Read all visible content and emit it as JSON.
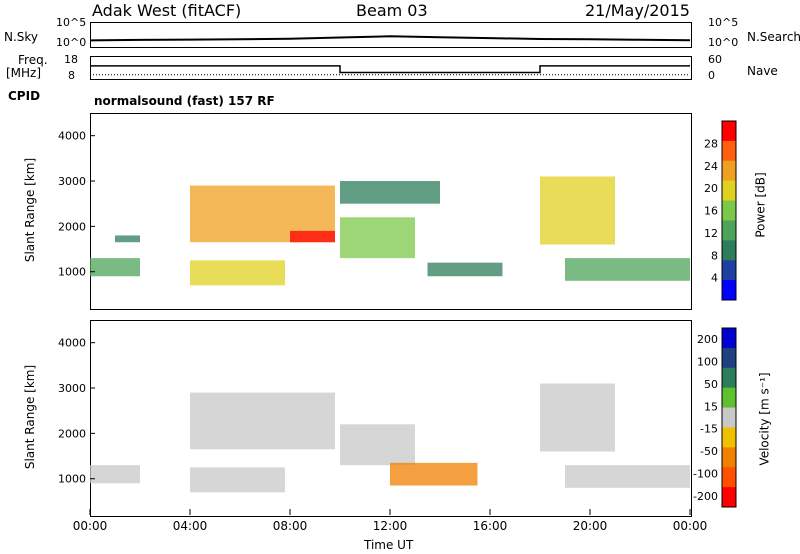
{
  "header": {
    "station": "Adak West (fitACF)",
    "beam": "Beam 03",
    "date": "21/May/2015"
  },
  "cpid": {
    "label": "CPID",
    "value": "normalsound (fast) 157 RF"
  },
  "colors": {
    "power_scale": [
      "#0000ff",
      "#1f3fa0",
      "#2e7d5a",
      "#4ca45a",
      "#7bc84a",
      "#e0d020",
      "#f0a020",
      "#ff6010",
      "#ff0000"
    ],
    "velocity_scale": [
      "#0000d0",
      "#204080",
      "#2e7d5a",
      "#60c030",
      "#c8c8c8",
      "#f0c000",
      "#f08000",
      "#ff5000",
      "#ff0000"
    ]
  },
  "chart_data": [
    {
      "type": "line",
      "panel": "noise",
      "left_label": "N.Sky",
      "right_label": "N.Search",
      "left_ticks": [
        "10^5",
        "10^0"
      ],
      "right_ticks": [
        "10^5",
        "10^0"
      ],
      "x": [
        0,
        2,
        4,
        6,
        8,
        10,
        12,
        14,
        16,
        18,
        20,
        22,
        24
      ],
      "series": [
        {
          "values_log": [
            0.55,
            0.7,
            0.8,
            0.9,
            1.1,
            1.5,
            1.9,
            1.6,
            1.3,
            1.0,
            0.9,
            0.75,
            0.6
          ]
        }
      ]
    },
    {
      "type": "line",
      "panel": "frequency",
      "left_label": "Freq.",
      "left_unit": "[MHz]",
      "right_label": "Nave",
      "left_ticks": [
        18,
        8
      ],
      "right_ticks": [
        60,
        0
      ],
      "series": [
        {
          "x": [
            0,
            10,
            10,
            18,
            18,
            24
          ],
          "values": [
            13.5,
            13.5,
            10.5,
            10.5,
            13.5,
            13.5
          ]
        },
        {
          "x": [
            0,
            24
          ],
          "values": [
            9.5,
            9.5
          ]
        }
      ]
    },
    {
      "type": "heatmap",
      "panel": "power",
      "ylabel": "Slant Range [km]",
      "yticks": [
        1000,
        2000,
        3000,
        4000
      ],
      "ylim": [
        200,
        4500
      ],
      "xlim": [
        0,
        24
      ],
      "colorbar_label": "Power [dB]",
      "colorbar_ticks": [
        4,
        8,
        12,
        16,
        20,
        24,
        28
      ],
      "echo_regions": [
        {
          "t": [
            0.0,
            2.0
          ],
          "r": [
            900,
            1300
          ],
          "level": 10
        },
        {
          "t": [
            1.0,
            2.0
          ],
          "r": [
            1650,
            1800
          ],
          "level": 6
        },
        {
          "t": [
            4.0,
            7.8
          ],
          "r": [
            700,
            1250
          ],
          "level": 16
        },
        {
          "t": [
            4.0,
            9.8
          ],
          "r": [
            1650,
            2900
          ],
          "level": 20
        },
        {
          "t": [
            8.0,
            9.8
          ],
          "r": [
            1650,
            1900
          ],
          "level": 28
        },
        {
          "t": [
            10.0,
            13.0
          ],
          "r": [
            1300,
            2200
          ],
          "level": 14
        },
        {
          "t": [
            10.0,
            14.0
          ],
          "r": [
            2500,
            3000
          ],
          "level": 6
        },
        {
          "t": [
            13.5,
            16.5
          ],
          "r": [
            900,
            1200
          ],
          "level": 6
        },
        {
          "t": [
            18.0,
            21.0
          ],
          "r": [
            1600,
            3100
          ],
          "level": 18
        },
        {
          "t": [
            19.0,
            24.0
          ],
          "r": [
            800,
            1300
          ],
          "level": 12
        }
      ]
    },
    {
      "type": "heatmap",
      "panel": "velocity",
      "ylabel": "Slant Range [km]",
      "yticks": [
        1000,
        2000,
        3000,
        4000
      ],
      "ylim": [
        200,
        4500
      ],
      "xlim": [
        0,
        24
      ],
      "xlabel": "Time UT",
      "xticks": [
        "00:00",
        "04:00",
        "08:00",
        "12:00",
        "16:00",
        "20:00",
        "00:00"
      ],
      "colorbar_label": "Velocity [m s⁻¹]",
      "colorbar_ticks": [
        200,
        100,
        50,
        15,
        -15,
        -50,
        -100,
        -200
      ],
      "echo_regions": [
        {
          "t": [
            0.0,
            2.0
          ],
          "r": [
            900,
            1300
          ],
          "level": 0
        },
        {
          "t": [
            4.0,
            7.8
          ],
          "r": [
            700,
            1250
          ],
          "level": 0
        },
        {
          "t": [
            4.0,
            9.8
          ],
          "r": [
            1650,
            2900
          ],
          "level": 0
        },
        {
          "t": [
            10.0,
            13.0
          ],
          "r": [
            1300,
            2200
          ],
          "level": 0
        },
        {
          "t": [
            12.0,
            15.5
          ],
          "r": [
            850,
            1350
          ],
          "level": -60
        },
        {
          "t": [
            18.0,
            21.0
          ],
          "r": [
            1600,
            3100
          ],
          "level": 0
        },
        {
          "t": [
            19.0,
            24.0
          ],
          "r": [
            800,
            1300
          ],
          "level": 0
        }
      ]
    }
  ]
}
